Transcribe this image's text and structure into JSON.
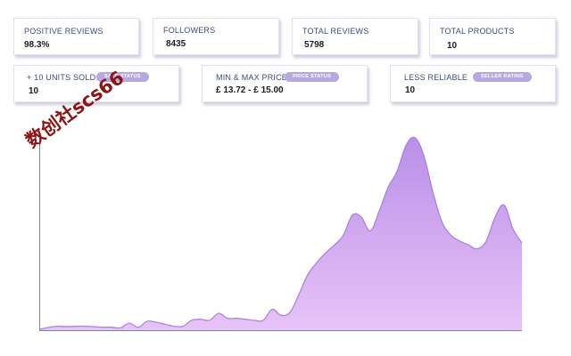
{
  "stats_row1": [
    {
      "label": "POSITIVE REVIEWS",
      "value": "98.3%"
    },
    {
      "label": "FOLLOWERS",
      "value": "8435"
    },
    {
      "label": "TOTAL REVIEWS",
      "value": "5798"
    },
    {
      "label": "TOTAL PRODUCTS",
      "value": "10"
    }
  ],
  "stats_row2": [
    {
      "label": "+ 10 UNITS SOLD",
      "badge": "SALE STATUS",
      "value": "10"
    },
    {
      "label": "MIN & MAX PRICE",
      "badge": "PRICE STATUS",
      "value": "£ 13.72 - £ 15.00"
    },
    {
      "label": "LESS RELIABLE",
      "badge": "SELLER RATING",
      "value": "10"
    }
  ],
  "watermark": "数创社scs66",
  "colors": {
    "label": "#3f4a7a",
    "badge": "#b7a8e2",
    "area_top": "#b98fe8",
    "area_bottom": "#e8c3f7",
    "line": "#a67fde",
    "axis": "#7a8898",
    "watermark": "#8b1414"
  },
  "chart_data": {
    "type": "area",
    "title": "",
    "xlabel": "",
    "ylabel": "",
    "ylim": [
      0,
      100
    ],
    "x": [
      0,
      1,
      2,
      3,
      4,
      5,
      6,
      7,
      8,
      9,
      10,
      11,
      12,
      13,
      14,
      15,
      16,
      17,
      18,
      19,
      20,
      21,
      22,
      23,
      24,
      25,
      26,
      27,
      28,
      29,
      30,
      31,
      32,
      33,
      34,
      35,
      36,
      37,
      38,
      39,
      40,
      41,
      42,
      43,
      44,
      45,
      46,
      47,
      48,
      49,
      50,
      51,
      52,
      53,
      54
    ],
    "values": [
      0.5,
      1.5,
      2,
      1.8,
      2,
      2,
      1.8,
      1.5,
      1.5,
      1.2,
      3.5,
      1.5,
      4.5,
      4,
      3,
      2,
      2,
      5,
      5.5,
      5,
      8.5,
      6,
      6,
      5.5,
      5,
      5,
      10.5,
      7.5,
      9,
      18,
      28,
      34,
      39,
      43,
      48,
      58,
      57,
      50,
      60,
      72,
      80,
      93,
      97,
      88,
      70,
      55,
      48,
      45,
      43,
      41,
      45,
      57,
      63,
      51,
      44
    ]
  }
}
